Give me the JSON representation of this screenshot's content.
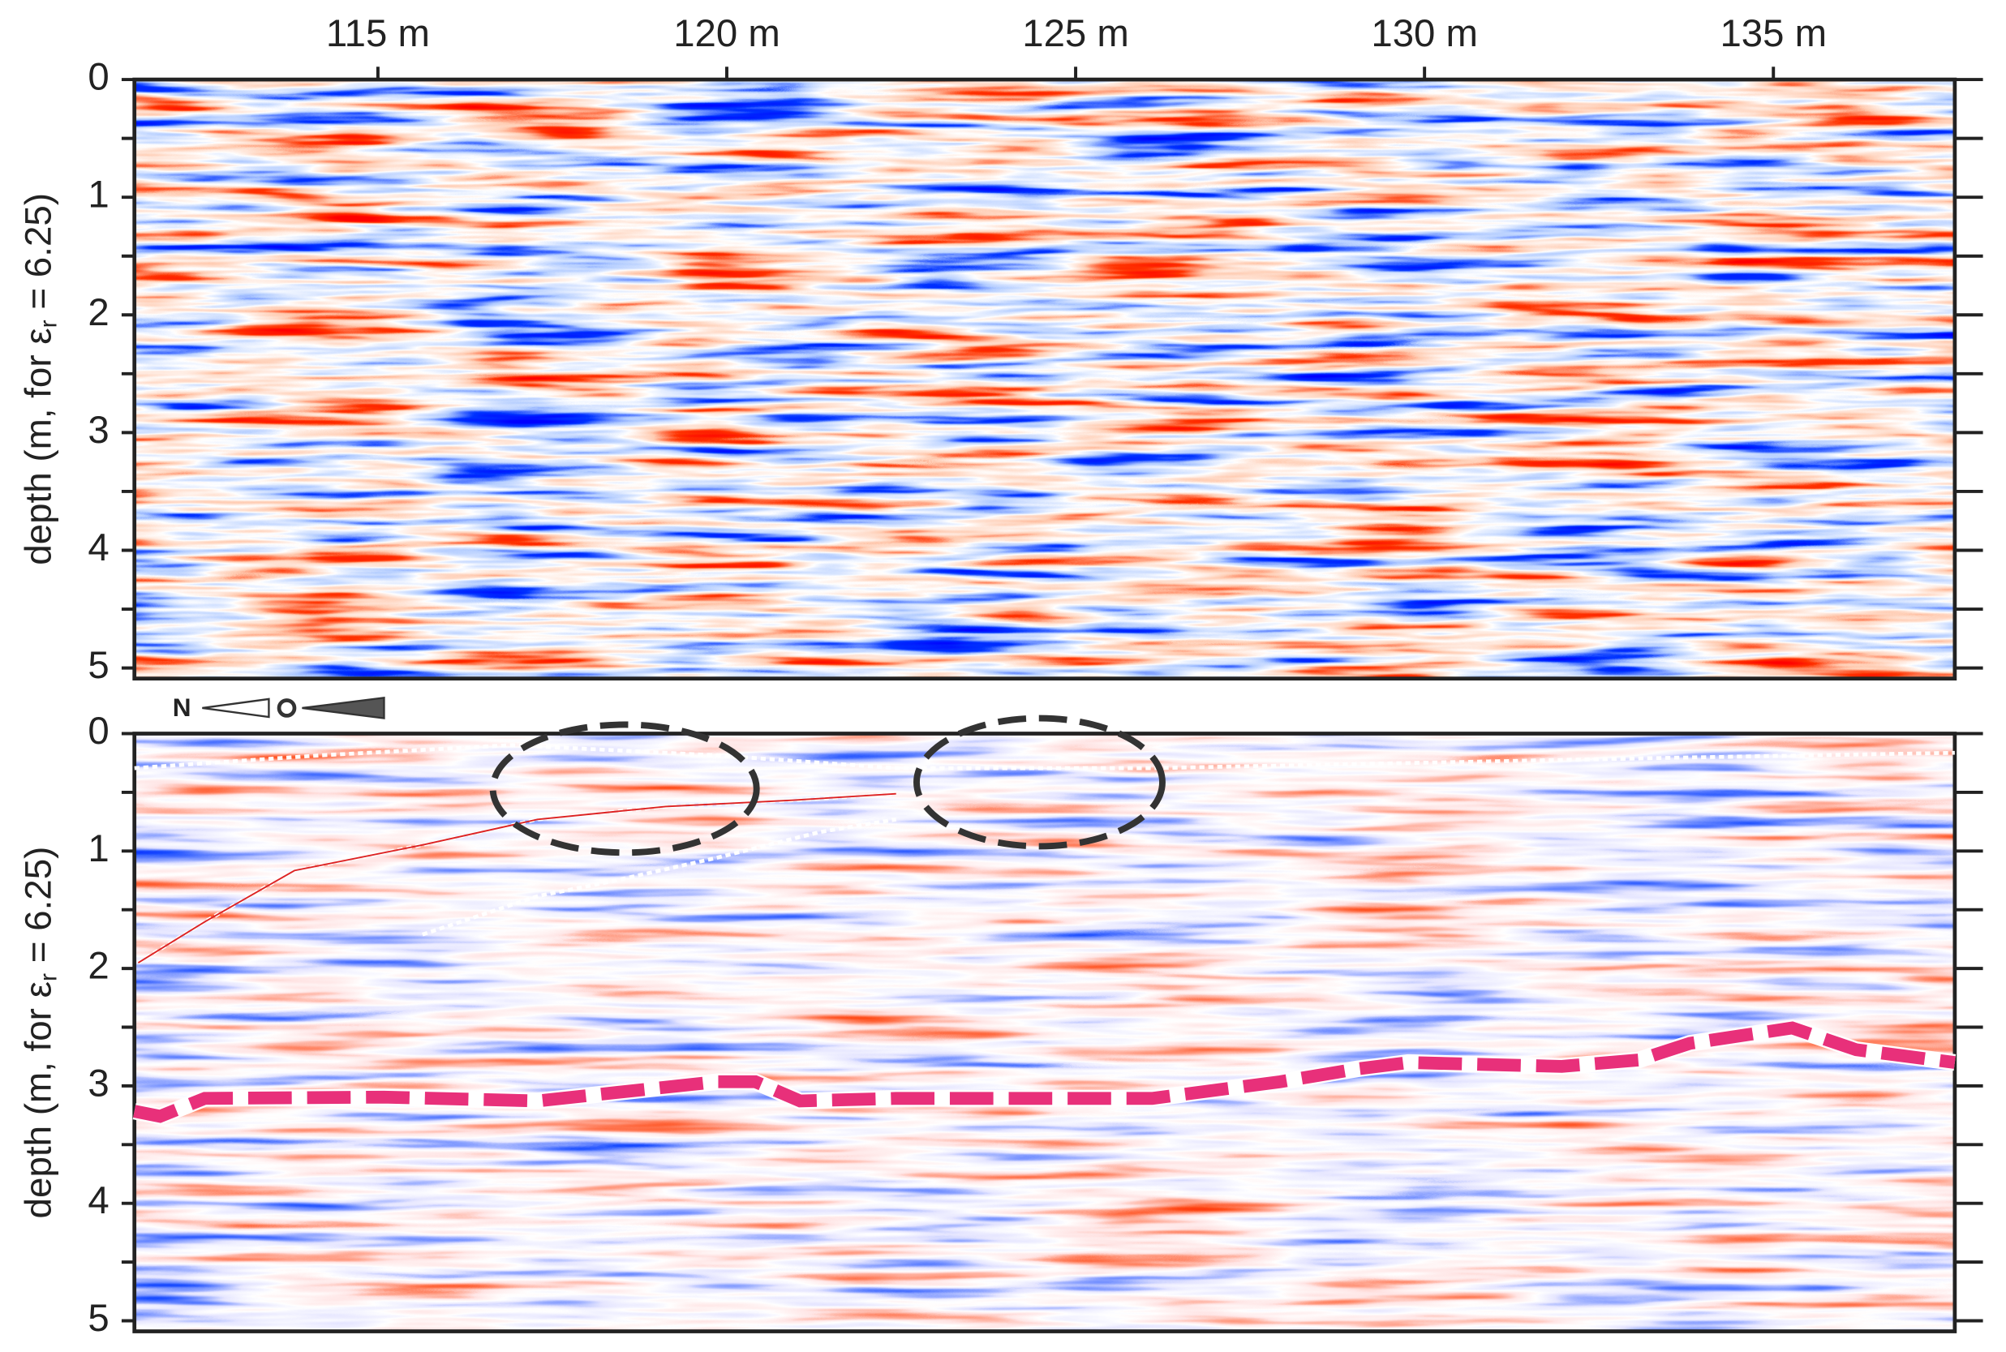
{
  "chart_data": [
    {
      "type": "radargram",
      "xlim": [
        111.51,
        137.6
      ],
      "xticks": [
        {
          "value": 115,
          "label": "115 m"
        },
        {
          "value": 120,
          "label": "120 m"
        },
        {
          "value": 125,
          "label": "125 m"
        },
        {
          "value": 130,
          "label": "130 m"
        },
        {
          "value": 135,
          "label": "135 m"
        }
      ],
      "ylim": [
        0,
        5.09
      ],
      "yticks": [
        0,
        1,
        2,
        3,
        4,
        5
      ],
      "yminorticks": [
        0.5,
        1.5,
        2.5,
        3.5,
        4.5
      ],
      "ylabel": "depth (m, for ε",
      "ylabel_sub": "r",
      "ylabel_end": " = 6.25)"
    },
    {
      "type": "radargram",
      "xlim": [
        111.51,
        137.6
      ],
      "ylim": [
        0,
        5.09
      ],
      "yticks": [
        0,
        1,
        2,
        3,
        4,
        5
      ],
      "yminorticks": [
        0.5,
        1.5,
        2.5,
        3.5,
        4.5
      ],
      "ylabel": "depth (m, for ε",
      "ylabel_sub": "r",
      "ylabel_end": " = 6.25)",
      "north_label": "N"
    }
  ]
}
